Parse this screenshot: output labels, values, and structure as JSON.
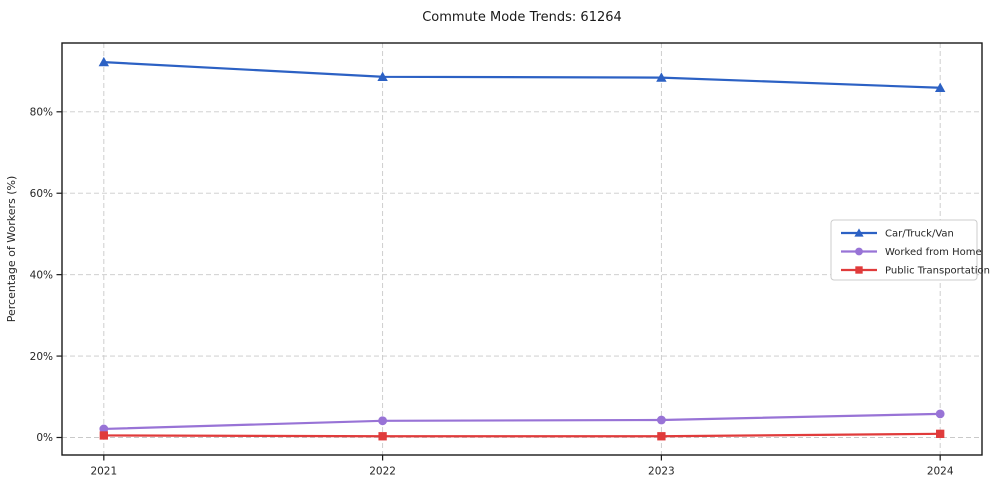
{
  "page": {
    "background": "#ffffff"
  },
  "chart_data": {
    "type": "line",
    "title": "Commute Mode Trends: 61264",
    "xlabel": "",
    "ylabel": "Percentage of Workers (%)",
    "x": [
      2021,
      2022,
      2023,
      2024
    ],
    "x_tick_labels": [
      "2021",
      "2022",
      "2023",
      "2024"
    ],
    "series": [
      {
        "name": "Car/Truck/Van",
        "values": [
          92.2,
          88.6,
          88.4,
          85.9
        ],
        "color": "#2c61c4",
        "marker": "triangle"
      },
      {
        "name": "Worked from Home",
        "values": [
          2.1,
          4.1,
          4.3,
          5.8
        ],
        "color": "#9873d6",
        "marker": "circle"
      },
      {
        "name": "Public Transportation",
        "values": [
          0.5,
          0.3,
          0.3,
          0.9
        ],
        "color": "#e03b3b",
        "marker": "square"
      }
    ],
    "yticks": [
      0,
      20,
      40,
      60,
      80
    ],
    "ytick_labels": [
      "0%",
      "20%",
      "40%",
      "60%",
      "80%"
    ],
    "ylim": [
      -4.3,
      96.9
    ],
    "xlim": [
      2020.85,
      2024.15
    ],
    "grid": true,
    "grid_on": "both",
    "grid_color": "#c9c9c9",
    "axis_color": "#1a1a1a",
    "text_color": "#262626",
    "legend": {
      "position": "right-middle",
      "border_color": "#cccccc",
      "background": "#ffffff"
    }
  }
}
